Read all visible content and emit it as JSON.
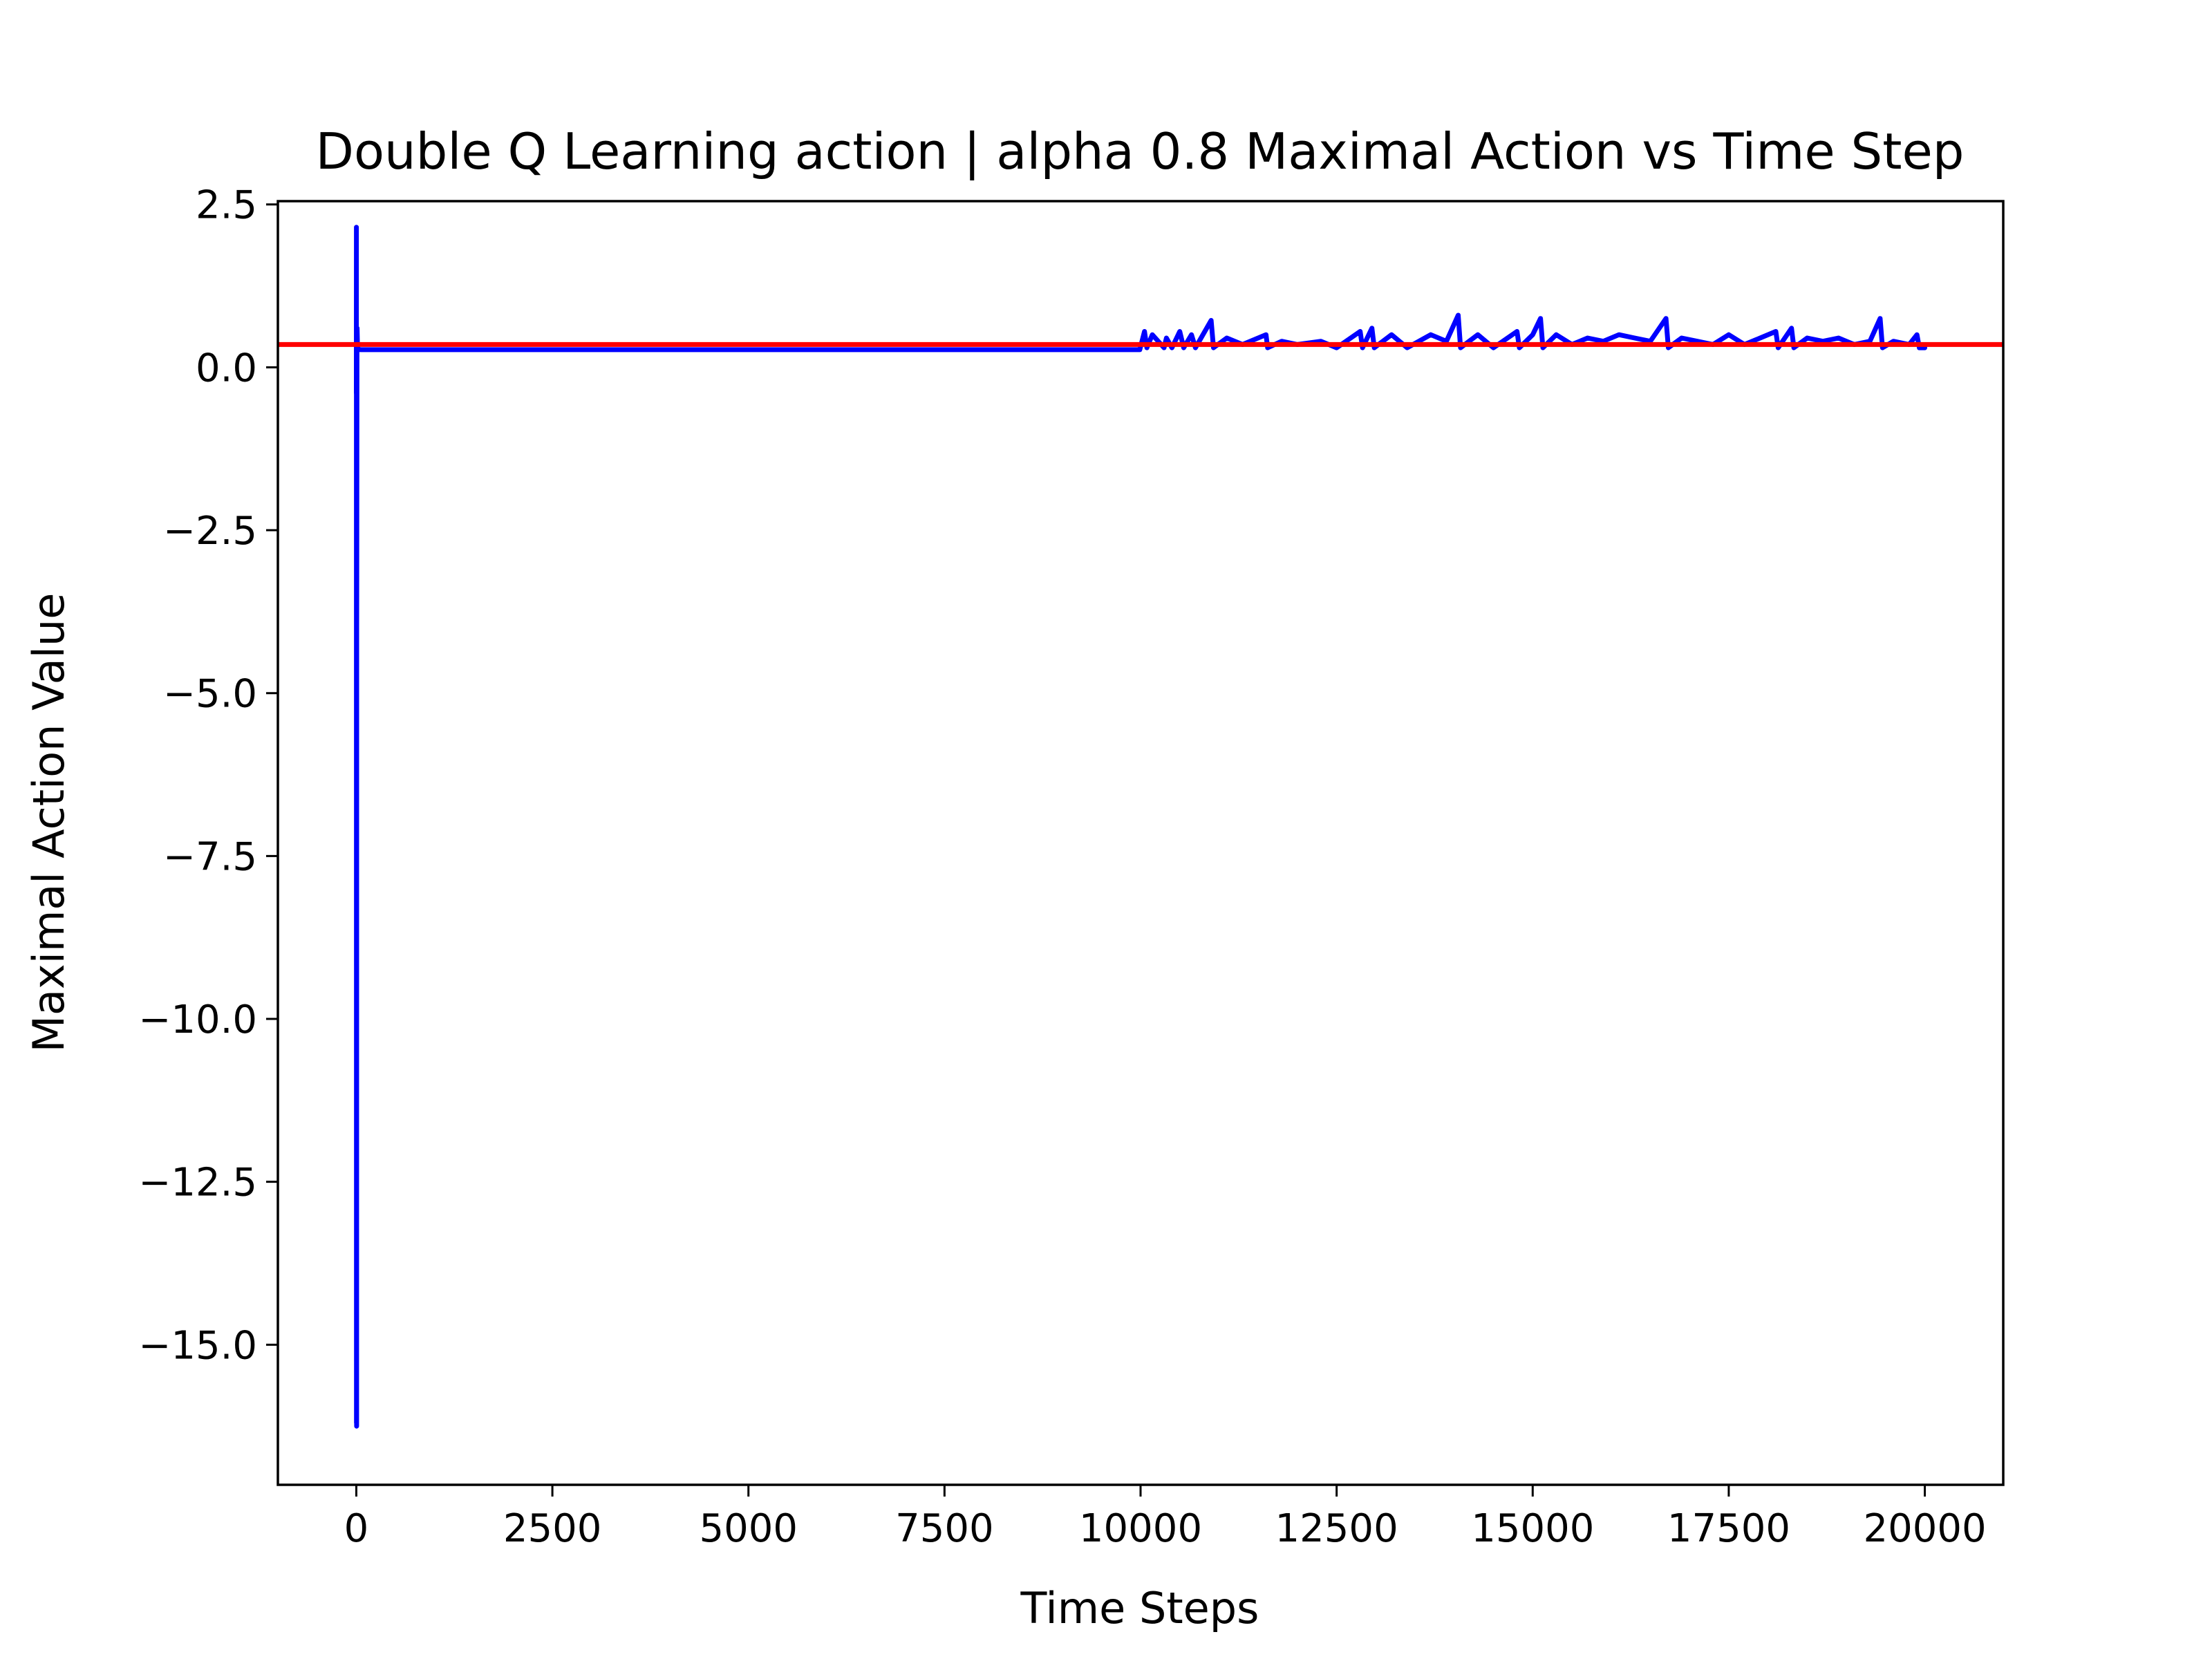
{
  "chart_data": {
    "type": "line",
    "title": "Double Q Learning action | alpha 0.8 Maximal Action vs Time Step",
    "xlabel": "Time Steps",
    "ylabel": "Maximal Action Value",
    "xlim": [
      -1000,
      21000
    ],
    "ylim": [
      -17.15,
      2.55
    ],
    "xticks": [
      0,
      2500,
      5000,
      7500,
      10000,
      12500,
      15000,
      17500,
      20000
    ],
    "xtick_labels": [
      "0",
      "2500",
      "5000",
      "7500",
      "10000",
      "12500",
      "15000",
      "17500",
      "20000"
    ],
    "yticks": [
      2.5,
      0.0,
      -2.5,
      -5.0,
      -7.5,
      -10.0,
      -12.5,
      -15.0
    ],
    "ytick_labels": [
      "2.5",
      "0.0",
      "−2.5",
      "−5.0",
      "−7.5",
      "−10.0",
      "−12.5",
      "−15.0"
    ],
    "grid": false,
    "legend": "none",
    "series": [
      {
        "color": "#0000ff",
        "x": [
          0,
          1,
          2,
          3,
          4,
          5,
          6,
          8,
          10,
          15,
          20,
          30,
          50,
          100,
          200,
          500,
          1000,
          3000,
          6000,
          9000,
          9990,
          10050,
          10080,
          10150,
          10300,
          10330,
          10400,
          10500,
          10550,
          10650,
          10700,
          10900,
          10930,
          11100,
          11300,
          11600,
          11620,
          11800,
          12000,
          12300,
          12500,
          12800,
          12830,
          12950,
          12980,
          13200,
          13400,
          13700,
          13900,
          14050,
          14080,
          14300,
          14500,
          14800,
          14830,
          15000,
          15100,
          15130,
          15300,
          15500,
          15700,
          15900,
          16100,
          16300,
          16500,
          16700,
          16730,
          16900,
          17100,
          17300,
          17500,
          17700,
          17900,
          18100,
          18130,
          18300,
          18330,
          18500,
          18700,
          18900,
          19100,
          19300,
          19430,
          19460,
          19600,
          19800,
          19900,
          19930,
          20000
        ],
        "y": [
          -0.4,
          2.15,
          -16.2,
          0.3,
          -16.25,
          -4.0,
          -3.2,
          0.3,
          0.6,
          0.3,
          0.28,
          0.28,
          0.27,
          0.27,
          0.27,
          0.27,
          0.27,
          0.27,
          0.27,
          0.27,
          0.27,
          0.55,
          0.3,
          0.5,
          0.3,
          0.45,
          0.3,
          0.55,
          0.3,
          0.5,
          0.3,
          0.72,
          0.3,
          0.45,
          0.35,
          0.5,
          0.3,
          0.4,
          0.35,
          0.4,
          0.3,
          0.55,
          0.3,
          0.6,
          0.3,
          0.5,
          0.3,
          0.5,
          0.4,
          0.8,
          0.3,
          0.5,
          0.3,
          0.55,
          0.3,
          0.5,
          0.75,
          0.3,
          0.5,
          0.35,
          0.45,
          0.4,
          0.5,
          0.45,
          0.4,
          0.75,
          0.3,
          0.45,
          0.4,
          0.35,
          0.5,
          0.35,
          0.45,
          0.55,
          0.3,
          0.6,
          0.3,
          0.45,
          0.4,
          0.45,
          0.35,
          0.4,
          0.75,
          0.3,
          0.4,
          0.35,
          0.5,
          0.3,
          0.3
        ]
      },
      {
        "color": "#ff0000",
        "x": [
          -1000,
          21000
        ],
        "y": [
          0.35,
          0.35
        ]
      }
    ]
  }
}
